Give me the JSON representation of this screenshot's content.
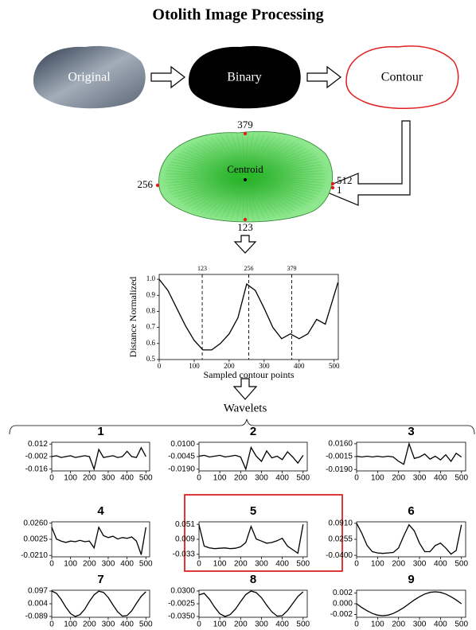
{
  "title": "Otolith Image Processing",
  "nodes": [
    {
      "label": "Original"
    },
    {
      "label": "Binary"
    },
    {
      "label": "Contour"
    }
  ],
  "centroid": {
    "label": "Centroid",
    "points": [
      379,
      256,
      512,
      1,
      123
    ]
  },
  "wavelets_label": "Wavelets",
  "chart_data": [
    {
      "type": "line",
      "xlabel": "Sampled contour points",
      "ylabel": "Distance Normalized",
      "x": [
        0,
        25,
        50,
        75,
        100,
        125,
        150,
        175,
        200,
        225,
        250,
        275,
        300,
        325,
        350,
        375,
        400,
        425,
        450,
        475,
        500,
        511
      ],
      "values": [
        1.0,
        0.93,
        0.82,
        0.71,
        0.62,
        0.56,
        0.56,
        0.6,
        0.66,
        0.76,
        0.97,
        0.93,
        0.82,
        0.7,
        0.63,
        0.66,
        0.63,
        0.66,
        0.75,
        0.72,
        0.9,
        0.98
      ],
      "vlines": [
        123,
        256,
        379
      ],
      "xlim": [
        0,
        512
      ],
      "ylim": [
        0.5,
        1.03
      ],
      "xticks": [
        0,
        100,
        200,
        300,
        400,
        500
      ],
      "yticks": [
        0.5,
        0.6,
        0.7,
        0.8,
        0.9,
        {
          "value": 1,
          "label": "1.0"
        }
      ],
      "color": "#000000"
    },
    {
      "type": "line",
      "title": "1",
      "x": [
        0,
        25,
        50,
        75,
        100,
        125,
        150,
        175,
        200,
        225,
        250,
        275,
        300,
        325,
        350,
        375,
        400,
        425,
        450,
        475,
        500
      ],
      "values": [
        -0.002,
        -0.001,
        -0.003,
        -0.002,
        -0.001,
        -0.003,
        -0.002,
        -0.001,
        -0.002,
        -0.016,
        0.006,
        -0.003,
        -0.002,
        -0.001,
        -0.003,
        -0.002,
        0.004,
        -0.002,
        -0.003,
        0.008,
        -0.002
      ],
      "xlim": [
        0,
        520
      ],
      "ylim": [
        -0.018,
        0.014
      ],
      "xticks": [
        0,
        100,
        200,
        300,
        400,
        500
      ],
      "yticks": [
        0.012,
        -0.002,
        -0.016
      ],
      "color": "#000000"
    },
    {
      "type": "line",
      "title": "2",
      "x": [
        0,
        25,
        50,
        75,
        100,
        125,
        150,
        175,
        200,
        225,
        250,
        275,
        300,
        325,
        350,
        375,
        400,
        425,
        450,
        475,
        500
      ],
      "values": [
        -0.004,
        -0.003,
        -0.005,
        -0.004,
        -0.003,
        -0.005,
        -0.004,
        -0.003,
        -0.005,
        -0.019,
        0.006,
        -0.004,
        -0.01,
        0.002,
        -0.006,
        -0.004,
        -0.008,
        0.001,
        -0.005,
        -0.012,
        -0.003
      ],
      "xlim": [
        0,
        520
      ],
      "ylim": [
        -0.021,
        0.012
      ],
      "xticks": [
        0,
        100,
        200,
        300,
        400,
        500
      ],
      "yticks": [
        {
          "value": 0.01,
          "label": "0.0100"
        },
        -0.0045,
        {
          "value": -0.019,
          "label": "-0.0190"
        }
      ],
      "color": "#000000"
    },
    {
      "type": "line",
      "title": "3",
      "x": [
        0,
        25,
        50,
        75,
        100,
        125,
        150,
        175,
        200,
        225,
        250,
        275,
        300,
        325,
        350,
        375,
        400,
        425,
        450,
        475,
        500
      ],
      "values": [
        -0.001,
        -0.002,
        -0.001,
        -0.002,
        -0.001,
        -0.002,
        -0.001,
        -0.002,
        -0.008,
        -0.012,
        0.016,
        -0.004,
        -0.002,
        0.002,
        -0.005,
        -0.001,
        -0.006,
        0.001,
        -0.008,
        0.003,
        -0.002
      ],
      "xlim": [
        0,
        520
      ],
      "ylim": [
        -0.021,
        0.018
      ],
      "xticks": [
        0,
        100,
        200,
        300,
        400,
        500
      ],
      "yticks": [
        {
          "value": 0.016,
          "label": "0.0160"
        },
        -0.0015,
        {
          "value": -0.019,
          "label": "-0.0190"
        }
      ],
      "color": "#000000"
    },
    {
      "type": "line",
      "title": "4",
      "x": [
        0,
        25,
        50,
        75,
        100,
        125,
        150,
        175,
        200,
        225,
        250,
        275,
        300,
        325,
        350,
        375,
        400,
        425,
        450,
        475,
        500
      ],
      "values": [
        0.02,
        0.003,
        0.0,
        -0.002,
        0.0,
        -0.001,
        0.001,
        -0.001,
        0.0,
        -0.01,
        0.02,
        0.008,
        0.005,
        0.007,
        0.003,
        0.005,
        0.004,
        0.006,
        0.0,
        -0.02,
        0.02
      ],
      "xlim": [
        0,
        520
      ],
      "ylim": [
        -0.023,
        0.028
      ],
      "xticks": [
        0,
        100,
        200,
        300,
        400,
        500
      ],
      "yticks": [
        {
          "value": 0.026,
          "label": "0.0260"
        },
        0.0025,
        {
          "value": -0.021,
          "label": "-0.0210"
        }
      ],
      "color": "#000000"
    },
    {
      "type": "line",
      "title": "5",
      "highlighted": true,
      "x": [
        0,
        25,
        50,
        75,
        100,
        125,
        150,
        175,
        200,
        225,
        250,
        275,
        300,
        325,
        350,
        375,
        400,
        425,
        450,
        475,
        500
      ],
      "values": [
        0.05,
        -0.01,
        -0.015,
        -0.017,
        -0.016,
        -0.015,
        -0.017,
        -0.016,
        -0.012,
        0.0,
        0.045,
        0.01,
        0.004,
        -0.002,
        0.0,
        0.005,
        0.012,
        -0.01,
        -0.02,
        -0.03,
        0.051
      ],
      "xlim": [
        0,
        520
      ],
      "ylim": [
        -0.04,
        0.058
      ],
      "xticks": [
        0,
        100,
        200,
        300,
        400,
        500
      ],
      "yticks": [
        0.051,
        0.009,
        -0.033
      ],
      "color": "#000000"
    },
    {
      "type": "line",
      "title": "6",
      "x": [
        0,
        25,
        50,
        75,
        100,
        125,
        150,
        175,
        200,
        225,
        250,
        275,
        300,
        325,
        350,
        375,
        400,
        425,
        450,
        475,
        500
      ],
      "values": [
        0.091,
        0.05,
        0.0,
        -0.025,
        -0.03,
        -0.032,
        -0.03,
        -0.028,
        -0.01,
        0.04,
        0.085,
        0.06,
        0.01,
        -0.025,
        -0.025,
        0.0,
        0.01,
        -0.01,
        -0.035,
        -0.02,
        0.085
      ],
      "xlim": [
        0,
        520
      ],
      "ylim": [
        -0.046,
        0.097
      ],
      "xticks": [
        0,
        100,
        200,
        300,
        400,
        500
      ],
      "yticks": [
        {
          "value": 0.091,
          "label": "0.0910"
        },
        0.0255,
        {
          "value": -0.04,
          "label": "-0.0400"
        }
      ],
      "color": "#000000"
    },
    {
      "type": "line",
      "title": "7",
      "x": [
        0,
        25,
        50,
        75,
        100,
        125,
        150,
        175,
        200,
        225,
        250,
        275,
        300,
        325,
        350,
        375,
        400,
        425,
        450,
        475,
        500
      ],
      "values": [
        0.097,
        0.08,
        0.036,
        -0.021,
        -0.068,
        -0.089,
        -0.076,
        -0.036,
        0.021,
        0.07,
        0.096,
        0.087,
        0.05,
        -0.005,
        -0.055,
        -0.086,
        -0.083,
        -0.047,
        0.007,
        0.058,
        0.092
      ],
      "xlim": [
        0,
        520
      ],
      "ylim": [
        -0.095,
        0.103
      ],
      "xticks": [
        0,
        100,
        200,
        300,
        400,
        500
      ],
      "yticks": [
        0.097,
        0.004,
        -0.089
      ],
      "color": "#000000"
    },
    {
      "type": "line",
      "title": "8",
      "x": [
        0,
        25,
        50,
        75,
        100,
        125,
        150,
        175,
        200,
        225,
        250,
        275,
        300,
        325,
        350,
        375,
        400,
        425,
        450,
        475,
        500
      ],
      "values": [
        0.02,
        0.024,
        0.009,
        -0.011,
        -0.028,
        -0.035,
        -0.03,
        -0.016,
        0.003,
        0.021,
        0.03,
        0.026,
        0.013,
        -0.006,
        -0.023,
        -0.034,
        -0.033,
        -0.02,
        -0.002,
        0.016,
        0.028
      ],
      "xlim": [
        0,
        520
      ],
      "ylim": [
        -0.037,
        0.032
      ],
      "xticks": [
        0,
        100,
        200,
        300,
        400,
        500
      ],
      "yticks": [
        {
          "value": 0.03,
          "label": "0.0300"
        },
        -0.0025,
        {
          "value": -0.035,
          "label": "-0.0350"
        }
      ],
      "color": "#000000"
    },
    {
      "type": "line",
      "title": "9",
      "x": [
        0,
        25,
        50,
        75,
        100,
        125,
        150,
        175,
        200,
        225,
        250,
        275,
        300,
        325,
        350,
        375,
        400,
        425,
        450,
        475,
        500
      ],
      "values": [
        0,
        -0.0007,
        -0.0013,
        -0.0018,
        -0.0021,
        -0.0022,
        -0.0021,
        -0.0018,
        -0.0013,
        -0.0007,
        0,
        0.0007,
        0.0013,
        0.0018,
        0.0021,
        0.0022,
        0.0021,
        0.0018,
        0.0013,
        0.0007,
        0
      ],
      "xlim": [
        0,
        520
      ],
      "ylim": [
        -0.0025,
        0.0025
      ],
      "xticks": [
        0,
        100,
        200,
        300,
        400,
        500
      ],
      "yticks": [
        0.002,
        {
          "value": 0,
          "label": "0.000"
        },
        -0.002
      ],
      "color": "#000000"
    }
  ]
}
